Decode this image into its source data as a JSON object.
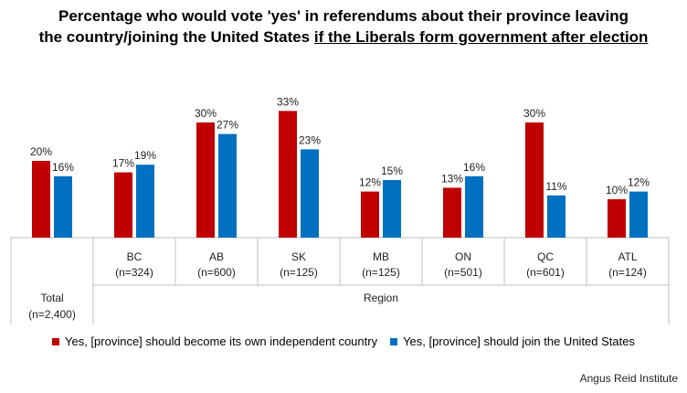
{
  "chart_data": {
    "type": "bar",
    "title_part1": "Percentage who would vote 'yes' in referendums about their province leaving",
    "title_part2": "the country/joining the United States ",
    "title_underlined": "if the Liberals form government after election",
    "categories": [
      "Total",
      "BC",
      "AB",
      "SK",
      "MB",
      "ON",
      "QC",
      "ATL"
    ],
    "sample_sizes": [
      "(n=2,400)",
      "(n=324)",
      "(n=600)",
      "(n=125)",
      "(n=125)",
      "(n=501)",
      "(n=601)",
      "(n=124)"
    ],
    "group_label": "Region",
    "series": [
      {
        "name": "Yes, [province] should become its own independent country",
        "color": "#c00000",
        "values": [
          20,
          17,
          30,
          33,
          12,
          13,
          30,
          10
        ]
      },
      {
        "name": "Yes, [province] should join the United States",
        "color": "#0070c0",
        "values": [
          16,
          19,
          27,
          23,
          15,
          16,
          11,
          12
        ]
      }
    ],
    "value_suffix": "%",
    "ylim": [
      0,
      35
    ],
    "grid": false,
    "legend_position": "bottom"
  },
  "source": "Angus Reid Institute"
}
